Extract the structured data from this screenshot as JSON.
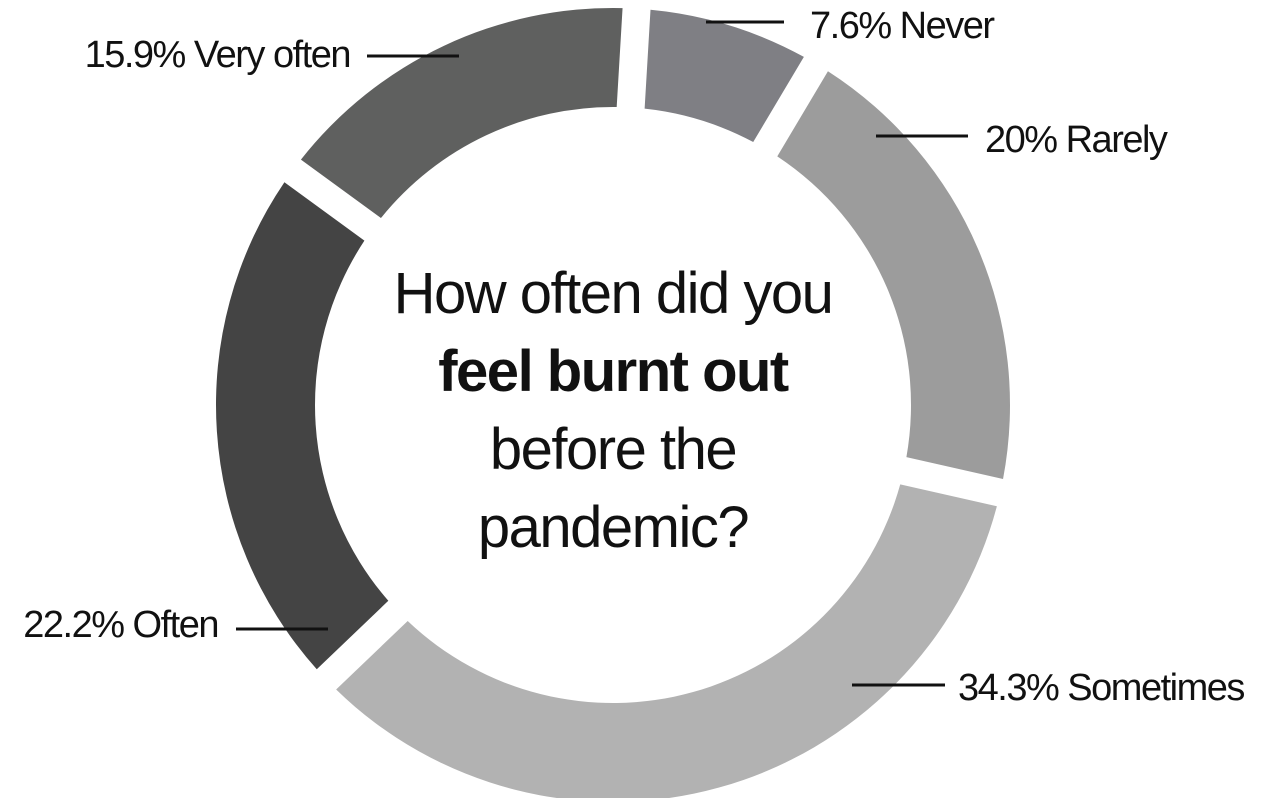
{
  "chart_data": {
    "type": "pie",
    "variant": "donut",
    "title_parts": [
      {
        "text": "How often did you ",
        "bold": false
      },
      {
        "text": "feel burnt out",
        "bold": true
      },
      {
        "text": " before the pandemic?",
        "bold": false
      }
    ],
    "slices": [
      {
        "name": "Never",
        "value": 7.6,
        "label": "7.6% Never",
        "color": "#7f7f84"
      },
      {
        "name": "Rarely",
        "value": 20,
        "label": "20% Rarely",
        "color": "#9c9c9c"
      },
      {
        "name": "Sometimes",
        "value": 34.3,
        "label": "34.3% Sometimes",
        "color": "#b2b2b2"
      },
      {
        "name": "Often",
        "value": 22.2,
        "label": "22.2% Often",
        "color": "#444444"
      },
      {
        "name": "Very often",
        "value": 15.9,
        "label": "15.9% Very often",
        "color": "#5f605f"
      }
    ]
  }
}
